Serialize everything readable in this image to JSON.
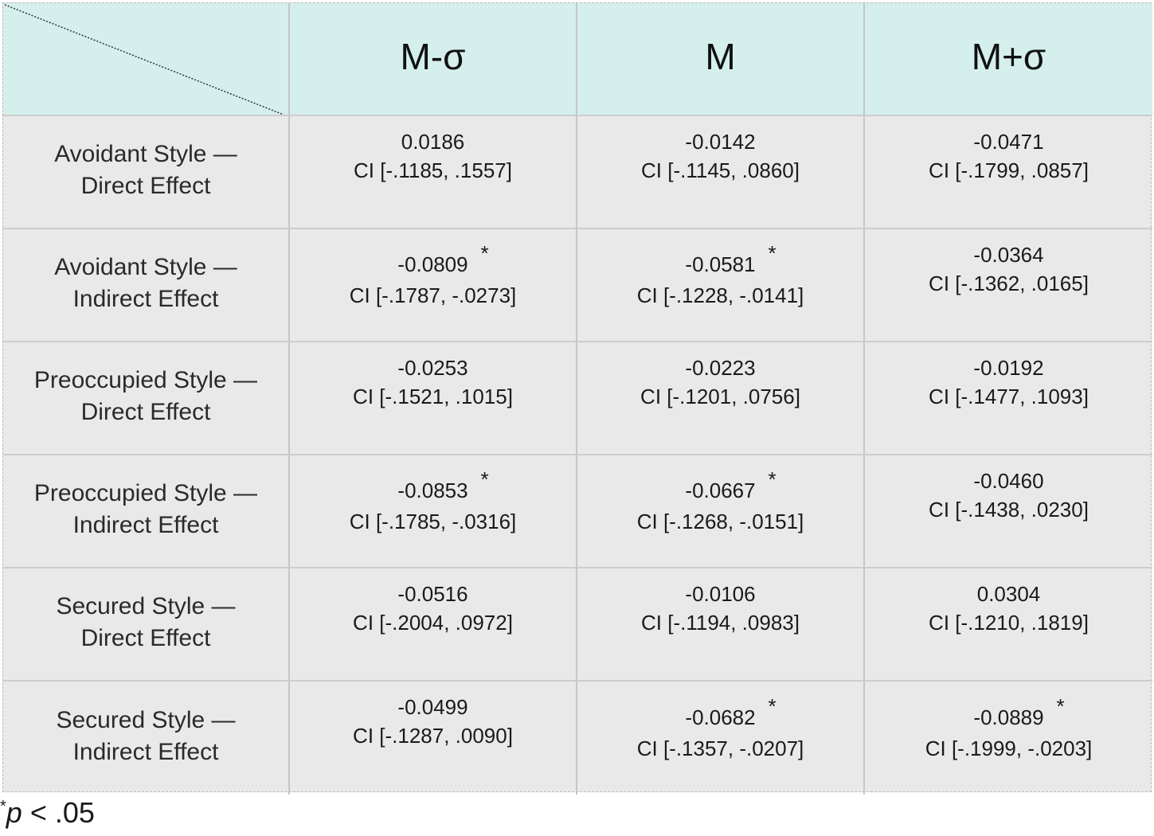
{
  "table": {
    "columns": [
      "M-σ",
      "M",
      "M+σ"
    ],
    "rows": [
      {
        "label_line1": "Avoidant Style —",
        "label_line2": "Direct Effect",
        "cells": [
          {
            "value": "0.0186",
            "ci": "CI [-.1185, .1557]",
            "sig": ""
          },
          {
            "value": "-0.0142",
            "ci": "CI [-.1145, .0860]",
            "sig": ""
          },
          {
            "value": "-0.0471",
            "ci": "CI [-.1799, .0857]",
            "sig": ""
          }
        ]
      },
      {
        "label_line1": "Avoidant Style —",
        "label_line2": "Indirect Effect",
        "cells": [
          {
            "value": "-0.0809",
            "ci": "CI [-.1787, -.0273]",
            "sig": "*"
          },
          {
            "value": "-0.0581",
            "ci": "CI [-.1228, -.0141]",
            "sig": "*"
          },
          {
            "value": "-0.0364",
            "ci": "CI [-.1362, .0165]",
            "sig": ""
          }
        ]
      },
      {
        "label_line1": "Preoccupied Style —",
        "label_line2": "Direct Effect",
        "cells": [
          {
            "value": "-0.0253",
            "ci": "CI [-.1521, .1015]",
            "sig": ""
          },
          {
            "value": "-0.0223",
            "ci": "CI [-.1201, .0756]",
            "sig": ""
          },
          {
            "value": "-0.0192",
            "ci": "CI [-.1477, .1093]",
            "sig": ""
          }
        ]
      },
      {
        "label_line1": "Preoccupied Style —",
        "label_line2": "Indirect Effect",
        "cells": [
          {
            "value": "-0.0853",
            "ci": "CI [-.1785, -.0316]",
            "sig": "*"
          },
          {
            "value": "-0.0667",
            "ci": "CI [-.1268, -.0151]",
            "sig": "*"
          },
          {
            "value": "-0.0460",
            "ci": "CI [-.1438, .0230]",
            "sig": ""
          }
        ]
      },
      {
        "label_line1": "Secured Style —",
        "label_line2": "Direct Effect",
        "cells": [
          {
            "value": "-0.0516",
            "ci": "CI [-.2004, .0972]",
            "sig": ""
          },
          {
            "value": "-0.0106",
            "ci": "CI [-.1194, .0983]",
            "sig": ""
          },
          {
            "value": "0.0304",
            "ci": "CI [-.1210, .1819]",
            "sig": ""
          }
        ]
      },
      {
        "label_line1": "Secured Style —",
        "label_line2": "Indirect Effect",
        "cells": [
          {
            "value": "-0.0499",
            "ci": "CI [-.1287, .0090]",
            "sig": ""
          },
          {
            "value": "-0.0682",
            "ci": "CI [-.1357, -.0207]",
            "sig": "*"
          },
          {
            "value": "-0.0889",
            "ci": "CI [-.1999, -.0203]",
            "sig": "*"
          }
        ]
      }
    ]
  },
  "footnote": {
    "star": "*",
    "p": "p",
    "rest": " < .05"
  },
  "colors": {
    "header_bg": "#d5efec",
    "cell_bg": "#e9e9e9"
  }
}
